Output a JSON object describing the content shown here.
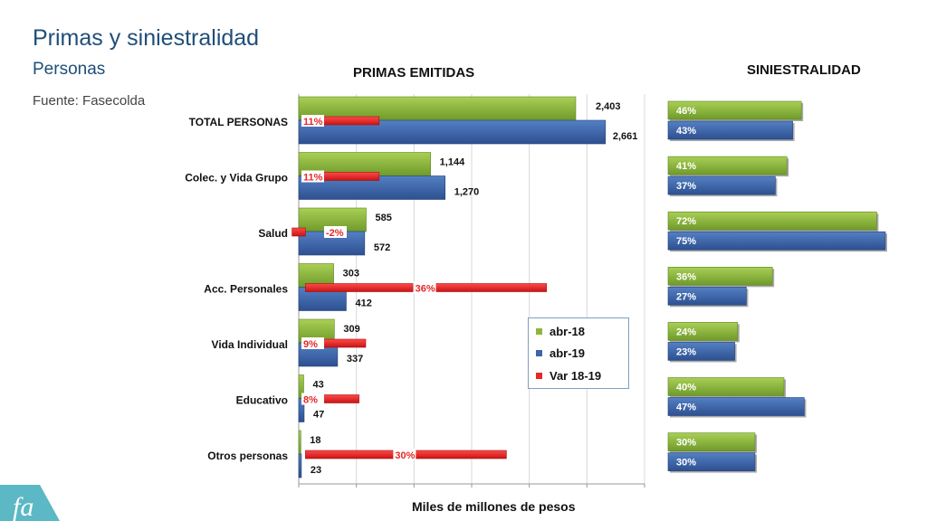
{
  "slide": {
    "title": "Primas y siniestralidad",
    "subtitle": "Personas",
    "source": "Fuente: Fasecolda"
  },
  "colors": {
    "green": "#8DB63C",
    "blue": "#3C66A8",
    "red": "#E52828",
    "title_blue": "#1F4E79"
  },
  "chart_data": [
    {
      "type": "bar",
      "title": "PRIMAS EMITIDAS",
      "xlabel": "Miles de millones de pesos",
      "categories": [
        "TOTAL PERSONAS",
        "Colec. y Vida Grupo",
        "Salud",
        "Acc. Personales",
        "Vida Individual",
        "Educativo",
        "Otros personas"
      ],
      "series": [
        {
          "name": "abr-18",
          "values": [
            2403,
            1144,
            585,
            303,
            309,
            43,
            18
          ],
          "labels": [
            "2,403",
            "1,144",
            "585",
            "303",
            "309",
            "43",
            "18"
          ]
        },
        {
          "name": "abr-19",
          "values": [
            2661,
            1270,
            572,
            412,
            337,
            47,
            23
          ],
          "labels": [
            "2,661",
            "1,270",
            "572",
            "412",
            "337",
            "47",
            "23"
          ]
        },
        {
          "name": "Var 18-19",
          "values": [
            11,
            11,
            -2,
            36,
            9,
            8,
            30
          ],
          "labels": [
            "11%",
            "11%",
            "-2%",
            "36%",
            "9%",
            "8%",
            "30%"
          ]
        }
      ],
      "xlim": [
        0,
        3000
      ],
      "var_scale_pct": [
        -1,
        45
      ],
      "grid": "vertical",
      "legend": "lower-right"
    },
    {
      "type": "bar",
      "title": "SINIESTRALIDAD",
      "categories": [
        "TOTAL PERSONAS",
        "Colec. y Vida Grupo",
        "Salud",
        "Acc. Personales",
        "Vida Individual",
        "Educativo",
        "Otros personas"
      ],
      "series": [
        {
          "name": "abr-18",
          "values": [
            46,
            41,
            72,
            36,
            24,
            40,
            30
          ],
          "labels": [
            "46%",
            "41%",
            "72%",
            "36%",
            "24%",
            "40%",
            "30%"
          ]
        },
        {
          "name": "abr-19",
          "values": [
            43,
            37,
            75,
            27,
            23,
            47,
            30
          ],
          "labels": [
            "43%",
            "37%",
            "75%",
            "27%",
            "23%",
            "47%",
            "30%"
          ]
        }
      ],
      "xlim": [
        0,
        75
      ]
    }
  ],
  "legend": {
    "items": [
      "abr-18",
      "abr-19",
      "Var 18-19"
    ]
  }
}
